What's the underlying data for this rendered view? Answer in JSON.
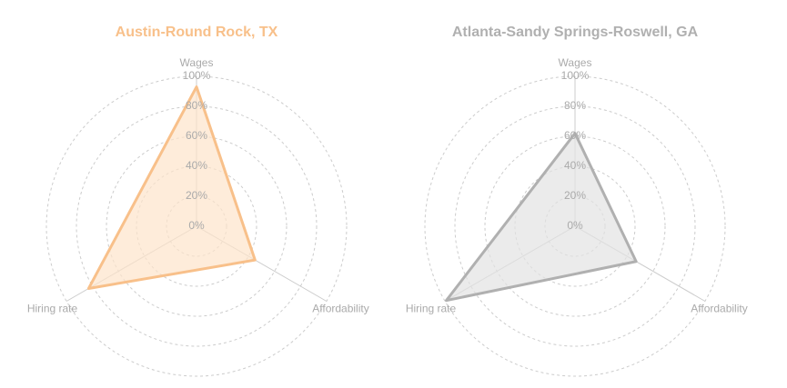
{
  "chart_data": [
    {
      "type": "radar",
      "title": "Austin-Round Rock, TX",
      "categories": [
        "Wages",
        "Affordability",
        "Hiring rate"
      ],
      "values": [
        93,
        45,
        83
      ],
      "color": "#f8c08a",
      "fill": "#fde4cb",
      "rlim": [
        0,
        100
      ],
      "rticks": [
        {
          "value": 0,
          "label": "0%"
        },
        {
          "value": 20,
          "label": "20%"
        },
        {
          "value": 40,
          "label": "40%"
        },
        {
          "value": 60,
          "label": "60%"
        },
        {
          "value": 80,
          "label": "80%"
        },
        {
          "value": 100,
          "label": "100%"
        }
      ]
    },
    {
      "type": "radar",
      "title": "Atlanta-Sandy Springs-Roswell, GA",
      "categories": [
        "Wages",
        "Affordability",
        "Hiring rate"
      ],
      "values": [
        62,
        47,
        99
      ],
      "color": "#b0b0b0",
      "fill": "#e2e2e2",
      "rlim": [
        0,
        100
      ],
      "rticks": [
        {
          "value": 0,
          "label": "0%"
        },
        {
          "value": 20,
          "label": "20%"
        },
        {
          "value": 40,
          "label": "40%"
        },
        {
          "value": 60,
          "label": "60%"
        },
        {
          "value": 80,
          "label": "80%"
        },
        {
          "value": 100,
          "label": "100%"
        }
      ]
    }
  ]
}
